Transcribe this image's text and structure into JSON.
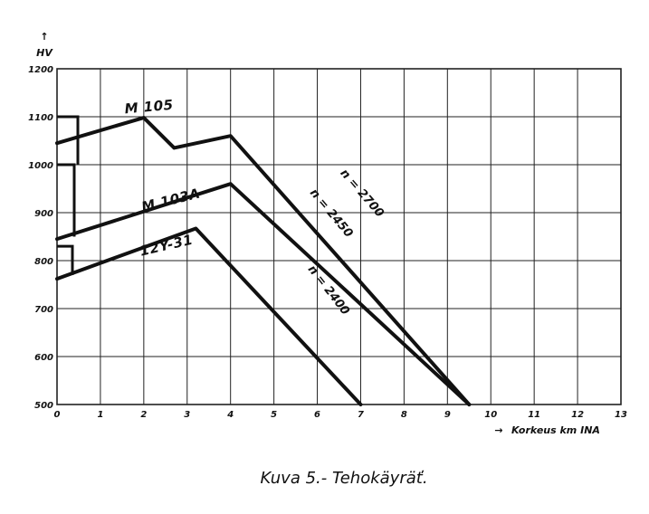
{
  "chart_data": {
    "type": "line",
    "ylabel": "HV",
    "xlabel": "Korkeus km INA",
    "caption": "Kuva 5.- Tehokäyräť.",
    "xlim": [
      0,
      13
    ],
    "ylim": [
      500,
      1200
    ],
    "x_ticks": [
      "0",
      "1",
      "2",
      "3",
      "4",
      "5",
      "6",
      "7",
      "8",
      "9",
      "10",
      "11",
      "12",
      "13"
    ],
    "y_ticks": [
      "500",
      "600",
      "700",
      "800",
      "900",
      "1000",
      "1100",
      "1200"
    ],
    "grid": true,
    "colors": {
      "line": "#111111",
      "grid": "#222222"
    },
    "series": [
      {
        "name": "M 105",
        "x": [
          0,
          2.0,
          2.7,
          4.0,
          9.5
        ],
        "y": [
          1045,
          1098,
          1035,
          1060,
          500
        ],
        "rpm_label": "n = 2700",
        "bracket": [
          1000,
          1100
        ]
      },
      {
        "name": "M 103A",
        "x": [
          0,
          4.0,
          9.5
        ],
        "y": [
          845,
          960,
          500
        ],
        "rpm_label": "n = 2450",
        "bracket": [
          850,
          1000
        ]
      },
      {
        "name": "12Y-31",
        "x": [
          0,
          3.2,
          7.0
        ],
        "y": [
          762,
          867,
          500
        ],
        "rpm_label": "n = 2400",
        "bracket": [
          770,
          830
        ]
      }
    ]
  }
}
